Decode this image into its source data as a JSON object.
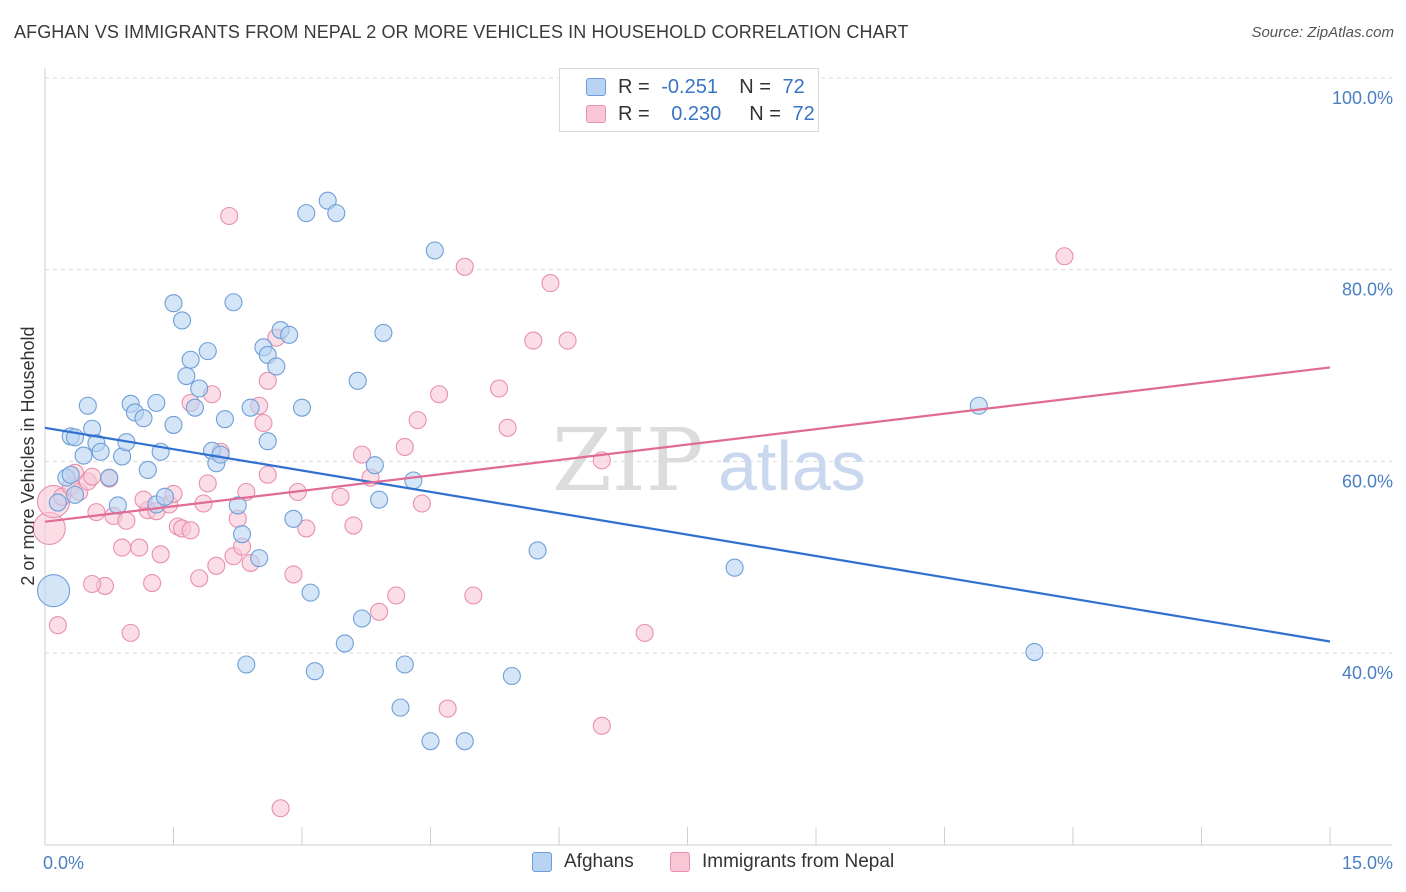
{
  "title": "AFGHAN VS IMMIGRANTS FROM NEPAL 2 OR MORE VEHICLES IN HOUSEHOLD CORRELATION CHART",
  "source": "Source: ZipAtlas.com",
  "watermark": {
    "zip": "ZIP",
    "atlas": "atlas"
  },
  "legend_top": {
    "rows": [
      {
        "r_label": "R =",
        "r_value": "-0.251",
        "n_label": "N =",
        "n_value": "72"
      },
      {
        "r_label": "R =",
        "r_value": "0.230",
        "n_label": "N =",
        "n_value": "72"
      }
    ]
  },
  "legend_bottom": {
    "afghans": "Afghans",
    "nepal": "Immigrants from Nepal"
  },
  "colors": {
    "afghans_fill": "#b9d3f3",
    "afghans_stroke": "#6f9fd8",
    "afghans_line": "#2f6fcf",
    "nepal_fill": "#f8c6d5",
    "nepal_stroke": "#e890ad",
    "nepal_line": "#e06b94",
    "grid": "#d9d9d9",
    "tick_text": "#4a7fc1"
  },
  "chart_data": {
    "type": "scatter",
    "title": "AFGHAN VS IMMIGRANTS FROM NEPAL 2 OR MORE VEHICLES IN HOUSEHOLD CORRELATION CHART",
    "xlabel": "",
    "ylabel": "2 or more Vehicles in Household",
    "xlim": [
      0,
      15
    ],
    "ylim": [
      20,
      102
    ],
    "x_tick_labels": [
      "0.0%",
      "15.0%"
    ],
    "y_tick_labels": [
      "100.0%",
      "80.0%",
      "60.0%",
      "40.0%"
    ],
    "y_ticks": [
      100,
      80,
      60,
      40
    ],
    "grid": true,
    "series": [
      {
        "name": "Afghans",
        "R": -0.251,
        "N": 72,
        "trend": {
          "x": [
            0,
            15
          ],
          "y": [
            63.5,
            41.2
          ]
        },
        "points": [
          [
            0.1,
            46.5
          ],
          [
            0.15,
            55.7
          ],
          [
            0.25,
            58.3
          ],
          [
            0.3,
            58.6
          ],
          [
            0.35,
            56.5
          ],
          [
            0.3,
            62.6
          ],
          [
            0.35,
            62.5
          ],
          [
            0.45,
            60.6
          ],
          [
            0.5,
            65.8
          ],
          [
            0.55,
            63.4
          ],
          [
            0.6,
            61.9
          ],
          [
            0.65,
            61.0
          ],
          [
            0.75,
            58.3
          ],
          [
            0.85,
            55.4
          ],
          [
            0.9,
            60.5
          ],
          [
            0.95,
            62.0
          ],
          [
            1.0,
            66.0
          ],
          [
            1.05,
            65.1
          ],
          [
            1.15,
            64.5
          ],
          [
            1.2,
            59.1
          ],
          [
            1.3,
            66.1
          ],
          [
            1.3,
            55.5
          ],
          [
            1.35,
            61.0
          ],
          [
            1.4,
            56.3
          ],
          [
            1.5,
            63.8
          ],
          [
            1.5,
            76.5
          ],
          [
            1.6,
            74.7
          ],
          [
            1.65,
            68.9
          ],
          [
            1.7,
            70.6
          ],
          [
            1.75,
            65.6
          ],
          [
            1.8,
            67.6
          ],
          [
            1.9,
            71.5
          ],
          [
            1.95,
            61.1
          ],
          [
            2.0,
            59.8
          ],
          [
            2.05,
            60.7
          ],
          [
            2.1,
            64.4
          ],
          [
            2.2,
            76.6
          ],
          [
            2.25,
            55.4
          ],
          [
            2.3,
            52.4
          ],
          [
            2.35,
            38.8
          ],
          [
            2.4,
            65.6
          ],
          [
            2.5,
            49.9
          ],
          [
            2.55,
            71.9
          ],
          [
            2.6,
            71.1
          ],
          [
            2.6,
            62.1
          ],
          [
            2.7,
            69.9
          ],
          [
            2.75,
            73.7
          ],
          [
            2.85,
            73.2
          ],
          [
            2.9,
            54.0
          ],
          [
            3.0,
            65.6
          ],
          [
            3.05,
            85.9
          ],
          [
            3.1,
            46.3
          ],
          [
            3.15,
            38.1
          ],
          [
            3.3,
            87.2
          ],
          [
            3.4,
            85.9
          ],
          [
            3.5,
            41.0
          ],
          [
            3.65,
            68.4
          ],
          [
            3.7,
            43.6
          ],
          [
            3.85,
            59.6
          ],
          [
            3.9,
            56.0
          ],
          [
            3.95,
            73.4
          ],
          [
            4.15,
            34.3
          ],
          [
            4.2,
            38.8
          ],
          [
            4.5,
            30.8
          ],
          [
            4.55,
            82.0
          ],
          [
            4.9,
            30.8
          ],
          [
            5.45,
            37.6
          ],
          [
            5.75,
            50.7
          ],
          [
            8.05,
            48.9
          ],
          [
            10.9,
            65.8
          ],
          [
            11.55,
            40.1
          ],
          [
            4.3,
            58.0
          ]
        ]
      },
      {
        "name": "Immigrants from Nepal",
        "R": 0.23,
        "N": 72,
        "trend": {
          "x": [
            0,
            15
          ],
          "y": [
            53.7,
            69.8
          ]
        },
        "points": [
          [
            0.05,
            53.0
          ],
          [
            0.1,
            55.8
          ],
          [
            0.15,
            42.9
          ],
          [
            0.2,
            56.3
          ],
          [
            0.3,
            57.4
          ],
          [
            0.35,
            58.8
          ],
          [
            0.4,
            56.8
          ],
          [
            0.5,
            57.9
          ],
          [
            0.55,
            58.4
          ],
          [
            0.6,
            54.7
          ],
          [
            0.7,
            47.0
          ],
          [
            0.75,
            58.2
          ],
          [
            0.8,
            54.3
          ],
          [
            0.9,
            51.0
          ],
          [
            0.95,
            53.8
          ],
          [
            1.0,
            42.1
          ],
          [
            1.1,
            51.0
          ],
          [
            1.2,
            54.9
          ],
          [
            1.25,
            47.3
          ],
          [
            1.3,
            54.8
          ],
          [
            1.35,
            50.3
          ],
          [
            1.45,
            55.5
          ],
          [
            1.5,
            56.6
          ],
          [
            1.55,
            53.2
          ],
          [
            1.6,
            53.0
          ],
          [
            1.7,
            66.1
          ],
          [
            1.8,
            47.8
          ],
          [
            1.85,
            55.6
          ],
          [
            1.9,
            57.7
          ],
          [
            1.95,
            67.0
          ],
          [
            2.05,
            61.0
          ],
          [
            2.15,
            85.6
          ],
          [
            2.2,
            50.1
          ],
          [
            2.25,
            54.0
          ],
          [
            2.3,
            51.1
          ],
          [
            2.35,
            56.8
          ],
          [
            2.4,
            49.4
          ],
          [
            2.5,
            65.8
          ],
          [
            2.55,
            64.0
          ],
          [
            2.6,
            68.4
          ],
          [
            2.7,
            72.9
          ],
          [
            2.75,
            23.8
          ],
          [
            2.9,
            48.2
          ],
          [
            2.95,
            56.8
          ],
          [
            3.05,
            53.0
          ],
          [
            3.6,
            53.3
          ],
          [
            3.7,
            60.7
          ],
          [
            3.8,
            58.3
          ],
          [
            3.9,
            44.3
          ],
          [
            4.1,
            46.0
          ],
          [
            4.2,
            61.5
          ],
          [
            4.35,
            64.3
          ],
          [
            4.4,
            55.6
          ],
          [
            4.6,
            67.0
          ],
          [
            4.7,
            34.2
          ],
          [
            4.9,
            80.3
          ],
          [
            5.0,
            46.0
          ],
          [
            5.3,
            67.6
          ],
          [
            5.4,
            63.5
          ],
          [
            5.7,
            72.6
          ],
          [
            5.9,
            78.6
          ],
          [
            6.1,
            72.6
          ],
          [
            6.5,
            60.1
          ],
          [
            6.5,
            32.4
          ],
          [
            7.0,
            42.1
          ],
          [
            11.9,
            81.4
          ],
          [
            1.15,
            56.0
          ],
          [
            0.55,
            47.2
          ],
          [
            2.6,
            58.6
          ],
          [
            3.45,
            56.3
          ],
          [
            1.7,
            52.8
          ],
          [
            2.0,
            49.1
          ]
        ]
      }
    ],
    "legend_placement": "top-center"
  }
}
